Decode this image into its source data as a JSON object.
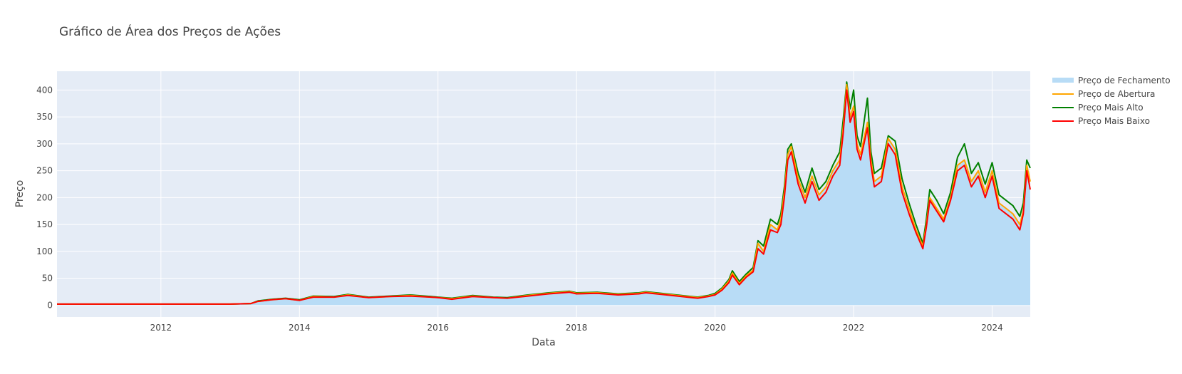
{
  "chart_data": {
    "type": "area",
    "title": "Gráfico de Área dos Preços de Ações",
    "xlabel": "Data",
    "ylabel": "Preço",
    "xlim": [
      2010.5,
      2024.55
    ],
    "ylim": [
      -22,
      435
    ],
    "xticks": [
      2012,
      2014,
      2016,
      2018,
      2020,
      2022,
      2024
    ],
    "xtick_labels": [
      "2012",
      "2014",
      "2016",
      "2018",
      "2020",
      "2022",
      "2024"
    ],
    "yticks": [
      0,
      50,
      100,
      150,
      200,
      250,
      300,
      350,
      400
    ],
    "ytick_labels": [
      "0",
      "50",
      "100",
      "150",
      "200",
      "250",
      "300",
      "350",
      "400"
    ],
    "grid": true,
    "legend_position": "right",
    "colors": {
      "plot_bg": "#e5ecf6",
      "grid": "#ffffff",
      "close_fill": "#b8dcf6",
      "open": "#ffa500",
      "high": "#008000",
      "low": "#ff0000"
    },
    "x": [
      2010.5,
      2011.0,
      2011.5,
      2012.0,
      2012.5,
      2013.0,
      2013.3,
      2013.4,
      2013.6,
      2013.8,
      2014.0,
      2014.2,
      2014.5,
      2014.7,
      2015.0,
      2015.3,
      2015.6,
      2015.9,
      2016.0,
      2016.2,
      2016.5,
      2016.8,
      2017.0,
      2017.3,
      2017.6,
      2017.9,
      2018.0,
      2018.3,
      2018.6,
      2018.9,
      2019.0,
      2019.3,
      2019.6,
      2019.75,
      2019.9,
      2020.0,
      2020.1,
      2020.2,
      2020.25,
      2020.35,
      2020.45,
      2020.55,
      2020.62,
      2020.7,
      2020.8,
      2020.9,
      2020.95,
      2021.0,
      2021.05,
      2021.1,
      2021.2,
      2021.3,
      2021.4,
      2021.5,
      2021.6,
      2021.7,
      2021.8,
      2021.85,
      2021.9,
      2021.95,
      2022.0,
      2022.05,
      2022.1,
      2022.2,
      2022.25,
      2022.3,
      2022.4,
      2022.5,
      2022.6,
      2022.7,
      2022.8,
      2022.9,
      2023.0,
      2023.05,
      2023.1,
      2023.2,
      2023.3,
      2023.4,
      2023.5,
      2023.6,
      2023.7,
      2023.8,
      2023.9,
      2024.0,
      2024.1,
      2024.2,
      2024.3,
      2024.4,
      2024.45,
      2024.5,
      2024.55
    ],
    "series": [
      {
        "name": "Preço de Fechamento",
        "values": [
          2,
          2,
          2,
          2,
          2,
          2,
          3,
          7,
          10,
          12,
          9,
          16,
          15,
          19,
          14,
          16,
          18,
          15,
          14,
          12,
          17,
          14,
          13,
          18,
          22,
          25,
          22,
          23,
          20,
          22,
          24,
          20,
          16,
          14,
          17,
          20,
          30,
          45,
          60,
          40,
          55,
          65,
          115,
          100,
          150,
          140,
          160,
          210,
          280,
          295,
          235,
          200,
          240,
          205,
          220,
          250,
          270,
          330,
          410,
          350,
          370,
          300,
          280,
          340,
          270,
          230,
          240,
          310,
          290,
          220,
          180,
          140,
          110,
          150,
          200,
          180,
          160,
          200,
          260,
          270,
          230,
          250,
          210,
          250,
          190,
          180,
          170,
          150,
          175,
          260,
          230
        ]
      },
      {
        "name": "Preço de Abertura",
        "values": [
          2,
          2,
          2,
          2,
          2,
          2,
          3,
          7,
          10,
          12,
          9,
          16,
          15,
          19,
          14,
          16,
          18,
          15,
          14,
          12,
          17,
          14,
          13,
          18,
          22,
          25,
          22,
          23,
          20,
          22,
          24,
          20,
          16,
          14,
          17,
          20,
          30,
          45,
          60,
          40,
          55,
          65,
          115,
          100,
          150,
          140,
          160,
          210,
          280,
          295,
          235,
          200,
          240,
          205,
          220,
          250,
          270,
          330,
          410,
          350,
          370,
          300,
          280,
          340,
          270,
          230,
          240,
          310,
          290,
          220,
          180,
          140,
          110,
          150,
          200,
          180,
          160,
          200,
          260,
          270,
          230,
          250,
          210,
          250,
          190,
          180,
          170,
          150,
          175,
          260,
          230
        ]
      },
      {
        "name": "Preço Mais Alto",
        "values": [
          2,
          2,
          2,
          2,
          2,
          2,
          3,
          8,
          11,
          13,
          10,
          17,
          16,
          20,
          15,
          17,
          19,
          16,
          15,
          13,
          18,
          15,
          14,
          19,
          23,
          26,
          23,
          24,
          21,
          23,
          25,
          21,
          17,
          15,
          18,
          22,
          32,
          48,
          64,
          44,
          58,
          70,
          120,
          110,
          160,
          150,
          170,
          220,
          290,
          300,
          245,
          210,
          255,
          215,
          230,
          260,
          285,
          345,
          415,
          365,
          400,
          315,
          295,
          385,
          285,
          245,
          255,
          315,
          305,
          235,
          190,
          150,
          115,
          160,
          215,
          195,
          170,
          210,
          275,
          300,
          245,
          265,
          225,
          265,
          205,
          195,
          185,
          165,
          190,
          270,
          255
        ]
      },
      {
        "name": "Preço Mais Baixo",
        "values": [
          2,
          2,
          2,
          2,
          2,
          2,
          3,
          7,
          10,
          12,
          9,
          15,
          15,
          18,
          14,
          16,
          17,
          15,
          14,
          11,
          16,
          14,
          13,
          17,
          21,
          24,
          21,
          22,
          19,
          21,
          23,
          19,
          15,
          13,
          16,
          19,
          28,
          42,
          56,
          38,
          52,
          62,
          105,
          95,
          140,
          135,
          150,
          200,
          270,
          285,
          225,
          190,
          230,
          195,
          210,
          240,
          260,
          320,
          400,
          340,
          360,
          290,
          270,
          330,
          260,
          220,
          230,
          300,
          280,
          210,
          170,
          135,
          105,
          145,
          195,
          175,
          155,
          195,
          250,
          260,
          220,
          240,
          200,
          240,
          180,
          170,
          160,
          140,
          170,
          250,
          215
        ]
      }
    ]
  }
}
